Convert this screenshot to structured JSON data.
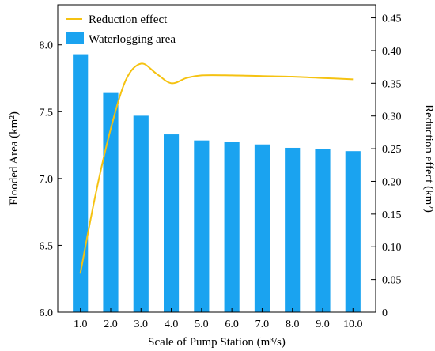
{
  "chart_data": {
    "type": "bar",
    "xlabel": "Scale of Pump Station (m³/s)",
    "categories": [
      "1.0",
      "2.0",
      "3.0",
      "4.0",
      "5.0",
      "6.0",
      "7.0",
      "8.0",
      "9.0",
      "10.0"
    ],
    "y_left": {
      "label": "Flooded Area  (km²)",
      "lim": [
        6.0,
        8.3
      ],
      "ticks": [
        "6.0",
        "6.5",
        "7.0",
        "7.5",
        "8.0"
      ]
    },
    "y_right": {
      "label": "Reduction effect (km²)",
      "lim": [
        0,
        0.47
      ],
      "ticks": [
        "0",
        "0.05",
        "0.10",
        "0.15",
        "0.20",
        "0.25",
        "0.30",
        "0.35",
        "0.40",
        "0.45"
      ]
    },
    "series": [
      {
        "name": "Waterlogging area",
        "type": "bar",
        "axis": "left",
        "color": "#1aa3f0",
        "values": [
          7.93,
          7.64,
          7.47,
          7.33,
          7.285,
          7.275,
          7.255,
          7.23,
          7.22,
          7.205
        ]
      },
      {
        "name": "Reduction effect",
        "type": "line",
        "axis": "right",
        "color": "#f5c211",
        "x": [
          1.0,
          1.5,
          2.0,
          2.5,
          3.0,
          3.5,
          4.0,
          4.5,
          5.0,
          6.0,
          7.0,
          8.0,
          9.0,
          10.0
        ],
        "values": [
          0.06,
          0.18,
          0.28,
          0.355,
          0.38,
          0.365,
          0.35,
          0.358,
          0.362,
          0.362,
          0.361,
          0.36,
          0.358,
          0.356
        ]
      }
    ],
    "legend": {
      "position": "top-left"
    },
    "grid": false
  }
}
